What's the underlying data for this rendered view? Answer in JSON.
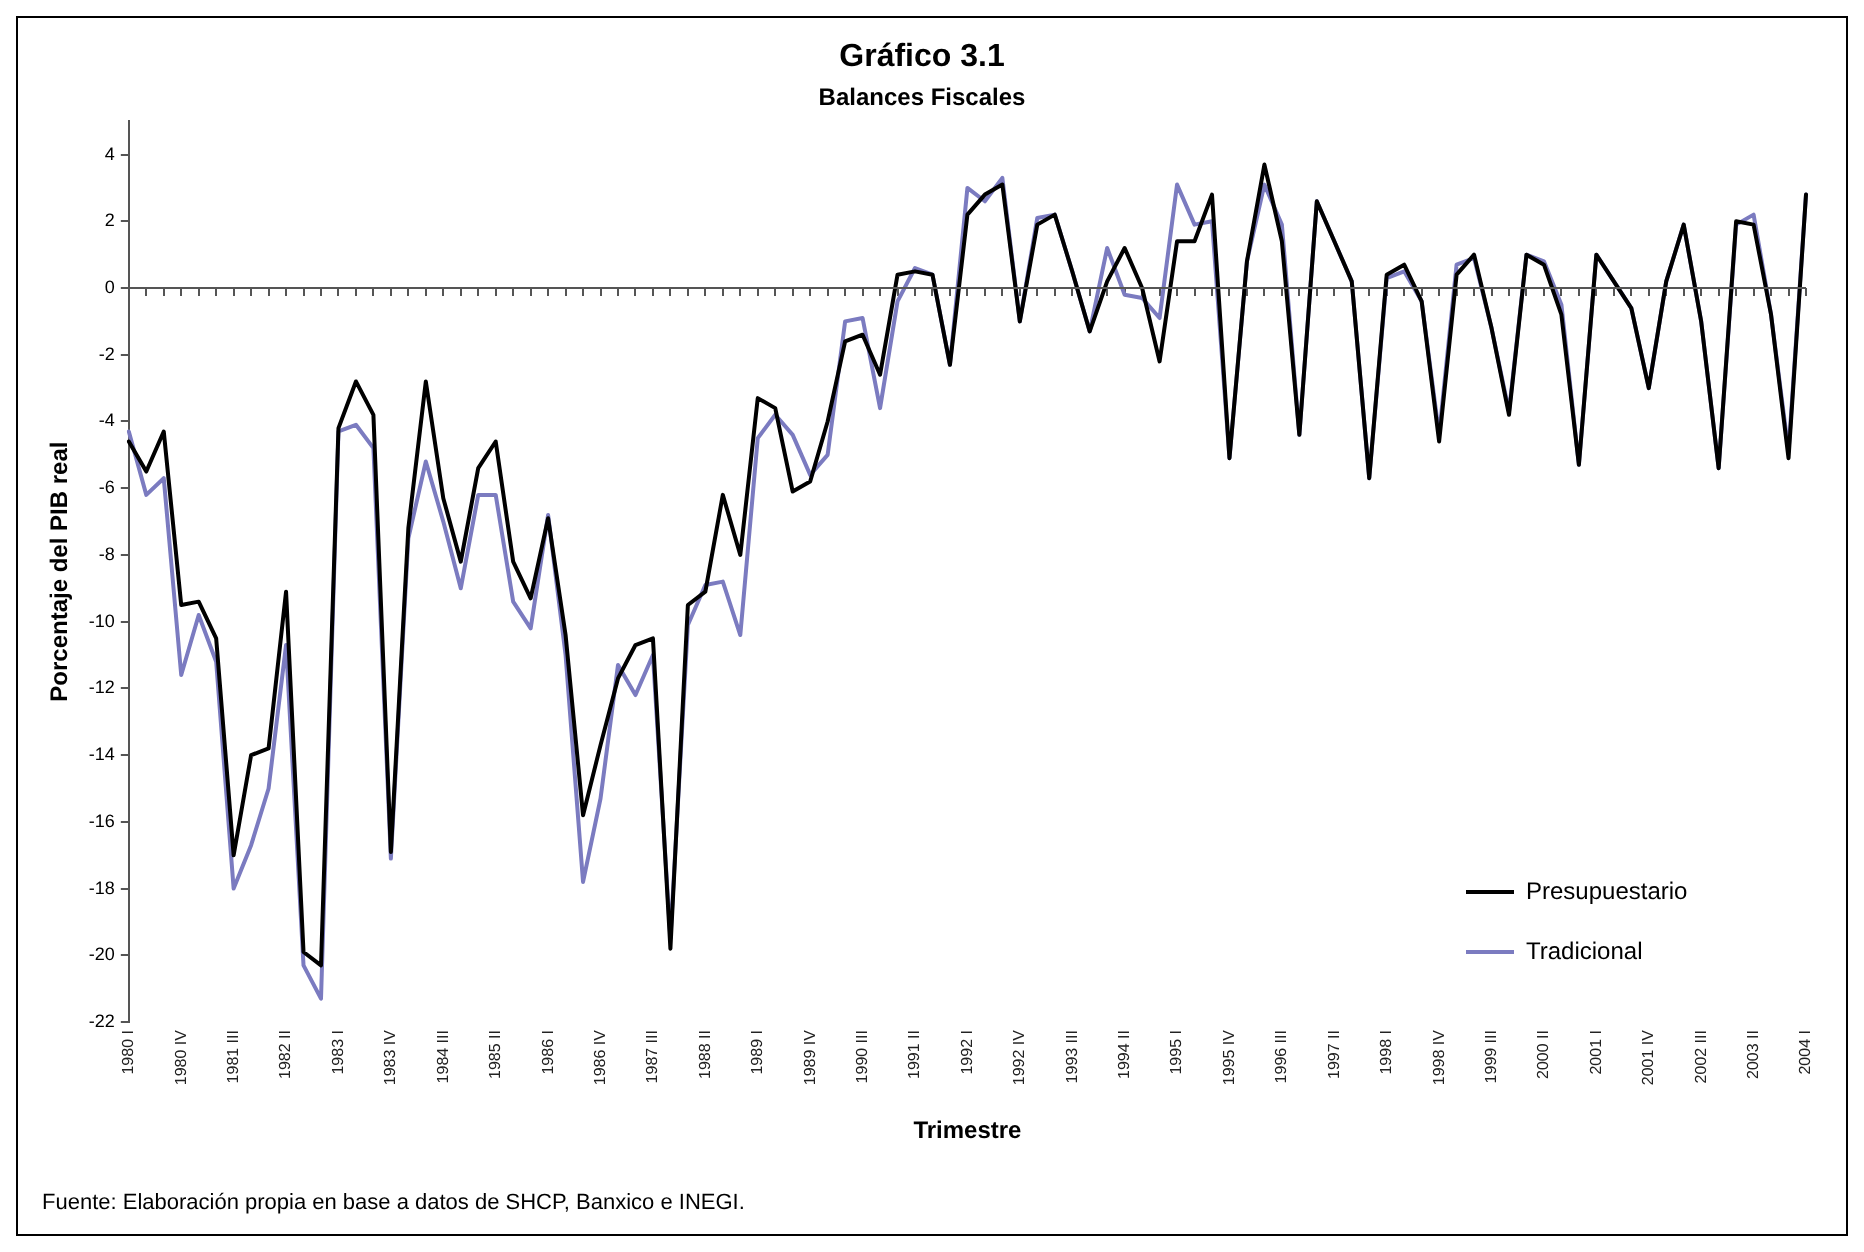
{
  "chart_data": {
    "type": "line",
    "title": "Gráfico 3.1",
    "subtitle": "Balances Fiscales",
    "xlabel": "Trimestre",
    "ylabel": "Porcentaje del PIB real",
    "annotations": [
      "Fuente: Elaboración propia en base a datos de SHCP, Banxico e INEGI."
    ],
    "categories": [
      "1980 I",
      null,
      null,
      "1980 IV",
      null,
      null,
      "1981 III",
      null,
      null,
      "1982 II",
      null,
      null,
      "1983 I",
      null,
      null,
      "1983 IV",
      null,
      null,
      "1984 III",
      null,
      null,
      "1985 II",
      null,
      null,
      "1986 I",
      null,
      null,
      "1986 IV",
      null,
      null,
      "1987 III",
      null,
      null,
      "1988 II",
      null,
      null,
      "1989 I",
      null,
      null,
      "1989 IV",
      null,
      null,
      "1990 III",
      null,
      null,
      "1991 II",
      null,
      null,
      "1992 I",
      null,
      null,
      "1992 IV",
      null,
      null,
      "1993 III",
      null,
      null,
      "1994 II",
      null,
      null,
      "1995 I",
      null,
      null,
      "1995 IV",
      null,
      null,
      "1996 III",
      null,
      null,
      "1997 II",
      null,
      null,
      "1998 I",
      null,
      null,
      "1998 IV",
      null,
      null,
      "1999 III",
      null,
      null,
      "2000 II",
      null,
      null,
      "2001 I",
      null,
      null,
      "2001 IV",
      null,
      null,
      "2002 III",
      null,
      null,
      "2003 II",
      null,
      null,
      "2004 I"
    ],
    "series": [
      {
        "name": "Presupuestario",
        "color": "#000000",
        "values": [
          -4.6,
          -5.5,
          -4.3,
          -9.5,
          -9.4,
          -10.5,
          -17.0,
          -14.0,
          -13.8,
          -9.1,
          -19.9,
          -20.3,
          -4.2,
          -2.8,
          -3.8,
          -16.9,
          -7.2,
          -2.8,
          -6.3,
          -8.2,
          -5.4,
          -4.6,
          -8.2,
          -9.3,
          -6.9,
          -10.4,
          -15.8,
          -13.7,
          -11.7,
          -10.7,
          -10.5,
          -19.8,
          -9.5,
          -9.1,
          -6.2,
          -8.0,
          -3.3,
          -3.6,
          -6.1,
          -5.8,
          -4.0,
          -1.6,
          -1.4,
          -2.6,
          0.4,
          0.5,
          0.4,
          -2.3,
          2.2,
          2.8,
          3.1,
          -1.0,
          1.9,
          2.2,
          0.5,
          -1.3,
          0.2,
          1.2,
          0.0,
          -2.2,
          1.4,
          1.4,
          2.8,
          -5.1,
          0.8,
          3.7,
          1.4,
          -4.4,
          2.6,
          1.4,
          0.2,
          -5.7,
          0.4,
          0.7,
          -0.4,
          -4.6,
          0.4,
          1.0,
          -1.2,
          -3.8,
          1.0,
          0.7,
          -0.8,
          -5.3,
          1.0,
          0.2,
          -0.6,
          -3.0,
          0.2,
          1.9,
          -1.0,
          -5.4,
          2.0,
          1.9,
          -0.8,
          -5.1,
          2.8
        ]
      },
      {
        "name": "Tradicional",
        "color": "#7b7bc0",
        "values": [
          -4.3,
          -6.2,
          -5.7,
          -11.6,
          -9.8,
          -11.2,
          -18.0,
          -16.7,
          -15.0,
          -10.7,
          -20.3,
          -21.3,
          -4.3,
          -4.1,
          -4.8,
          -17.1,
          -7.5,
          -5.2,
          -7.0,
          -9.0,
          -6.2,
          -6.2,
          -9.4,
          -10.2,
          -6.8,
          -11.0,
          -17.8,
          -15.3,
          -11.3,
          -12.2,
          -11.0,
          -19.5,
          -10.1,
          -8.9,
          -8.8,
          -10.4,
          -4.5,
          -3.8,
          -4.4,
          -5.6,
          -5.0,
          -1.0,
          -0.9,
          -3.6,
          -0.4,
          0.6,
          0.4,
          -2.3,
          3.0,
          2.6,
          3.3,
          -1.0,
          2.1,
          2.2,
          0.5,
          -1.3,
          1.2,
          -0.2,
          -0.3,
          -0.9,
          3.1,
          1.9,
          2.0,
          -5.1,
          0.8,
          3.1,
          1.9,
          -4.4,
          2.6,
          1.4,
          0.2,
          -5.7,
          0.3,
          0.5,
          -0.4,
          -4.4,
          0.7,
          0.9,
          -1.2,
          -3.7,
          1.0,
          0.8,
          -0.5,
          -5.3,
          1.0,
          0.2,
          -0.6,
          -3.0,
          0.2,
          1.9,
          -1.0,
          -5.4,
          1.9,
          2.2,
          -0.8,
          -4.9,
          2.8
        ]
      }
    ],
    "ylim": [
      -22,
      5
    ],
    "yticks": [
      -22,
      -20,
      -18,
      -16,
      -14,
      -12,
      -10,
      -8,
      -6,
      -4,
      -2,
      0,
      2,
      4
    ],
    "ref_lines": [
      {
        "axis": "y",
        "value": 0,
        "color": "#555555"
      }
    ],
    "grid": false,
    "legend": "bottom right",
    "marker": "none",
    "line_style": "solid"
  }
}
